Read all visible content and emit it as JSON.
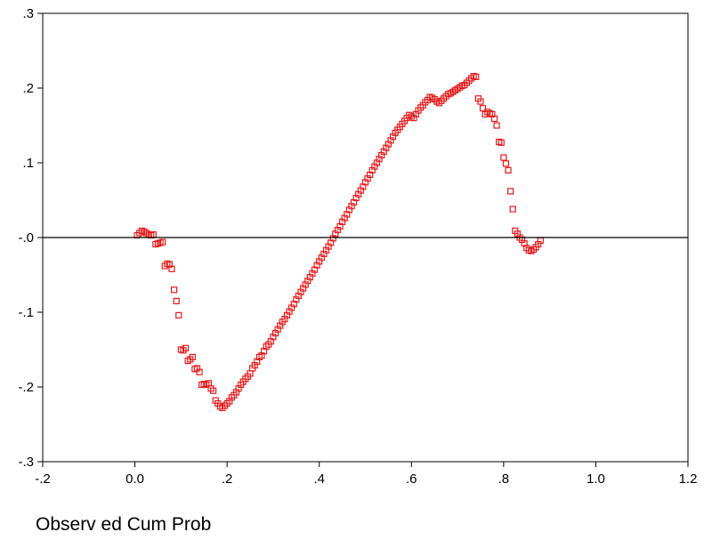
{
  "chart_data": {
    "type": "scatter",
    "title": "",
    "xlabel": "Observ ed Cum Prob",
    "ylabel": "",
    "xlim": [
      -0.2,
      1.2
    ],
    "ylim": [
      -0.3,
      0.3
    ],
    "x_ticks": [
      -0.2,
      0.0,
      0.2,
      0.4,
      0.6,
      0.8,
      1.0,
      1.2
    ],
    "x_tick_labels": [
      "-.2",
      "0.0",
      ".2",
      ".4",
      ".6",
      ".8",
      "1.0",
      "1.2"
    ],
    "y_ticks": [
      0.3,
      0.2,
      0.1,
      0.0,
      -0.1,
      -0.2,
      -0.3
    ],
    "y_tick_labels": [
      ".3",
      ".2",
      ".1",
      "-.0",
      "-.1",
      "-.2",
      "-.3"
    ],
    "reference_line_y": 0.0,
    "grid": false,
    "marker": "hollow-square",
    "colors": {
      "points": "#e41a1c",
      "axis": "#000000",
      "reference": "#000000"
    },
    "series": [
      {
        "points": [
          [
            0.005,
            0.003
          ],
          [
            0.01,
            0.006
          ],
          [
            0.015,
            0.009
          ],
          [
            0.02,
            0.008
          ],
          [
            0.025,
            0.006
          ],
          [
            0.03,
            0.004
          ],
          [
            0.035,
            0.003
          ],
          [
            0.04,
            0.004
          ],
          [
            0.045,
            -0.009
          ],
          [
            0.05,
            -0.008
          ],
          [
            0.055,
            -0.007
          ],
          [
            0.06,
            -0.006
          ],
          [
            0.065,
            -0.038
          ],
          [
            0.07,
            -0.035
          ],
          [
            0.075,
            -0.036
          ],
          [
            0.08,
            -0.042
          ],
          [
            0.085,
            -0.07
          ],
          [
            0.09,
            -0.085
          ],
          [
            0.095,
            -0.104
          ],
          [
            0.1,
            -0.15
          ],
          [
            0.105,
            -0.151
          ],
          [
            0.11,
            -0.148
          ],
          [
            0.115,
            -0.165
          ],
          [
            0.12,
            -0.163
          ],
          [
            0.125,
            -0.16
          ],
          [
            0.13,
            -0.176
          ],
          [
            0.135,
            -0.175
          ],
          [
            0.14,
            -0.18
          ],
          [
            0.145,
            -0.197
          ],
          [
            0.15,
            -0.196
          ],
          [
            0.155,
            -0.197
          ],
          [
            0.16,
            -0.195
          ],
          [
            0.165,
            -0.202
          ],
          [
            0.17,
            -0.205
          ],
          [
            0.175,
            -0.218
          ],
          [
            0.18,
            -0.222
          ],
          [
            0.185,
            -0.226
          ],
          [
            0.19,
            -0.228
          ],
          [
            0.195,
            -0.225
          ],
          [
            0.2,
            -0.222
          ],
          [
            0.205,
            -0.219
          ],
          [
            0.21,
            -0.214
          ],
          [
            0.215,
            -0.211
          ],
          [
            0.22,
            -0.207
          ],
          [
            0.225,
            -0.202
          ],
          [
            0.23,
            -0.197
          ],
          [
            0.235,
            -0.193
          ],
          [
            0.24,
            -0.189
          ],
          [
            0.245,
            -0.186
          ],
          [
            0.25,
            -0.182
          ],
          [
            0.255,
            -0.175
          ],
          [
            0.26,
            -0.171
          ],
          [
            0.265,
            -0.166
          ],
          [
            0.27,
            -0.16
          ],
          [
            0.275,
            -0.158
          ],
          [
            0.28,
            -0.152
          ],
          [
            0.285,
            -0.146
          ],
          [
            0.29,
            -0.143
          ],
          [
            0.295,
            -0.139
          ],
          [
            0.3,
            -0.133
          ],
          [
            0.305,
            -0.128
          ],
          [
            0.31,
            -0.123
          ],
          [
            0.315,
            -0.118
          ],
          [
            0.32,
            -0.113
          ],
          [
            0.325,
            -0.109
          ],
          [
            0.33,
            -0.104
          ],
          [
            0.335,
            -0.099
          ],
          [
            0.34,
            -0.094
          ],
          [
            0.345,
            -0.089
          ],
          [
            0.35,
            -0.083
          ],
          [
            0.355,
            -0.078
          ],
          [
            0.36,
            -0.073
          ],
          [
            0.365,
            -0.068
          ],
          [
            0.37,
            -0.063
          ],
          [
            0.375,
            -0.058
          ],
          [
            0.38,
            -0.053
          ],
          [
            0.385,
            -0.048
          ],
          [
            0.39,
            -0.043
          ],
          [
            0.395,
            -0.037
          ],
          [
            0.4,
            -0.032
          ],
          [
            0.405,
            -0.027
          ],
          [
            0.41,
            -0.022
          ],
          [
            0.415,
            -0.017
          ],
          [
            0.42,
            -0.012
          ],
          [
            0.425,
            -0.007
          ],
          [
            0.43,
            -0.001
          ],
          [
            0.435,
            0.005
          ],
          [
            0.44,
            0.01
          ],
          [
            0.445,
            0.015
          ],
          [
            0.45,
            0.021
          ],
          [
            0.455,
            0.026
          ],
          [
            0.46,
            0.031
          ],
          [
            0.465,
            0.037
          ],
          [
            0.47,
            0.042
          ],
          [
            0.475,
            0.047
          ],
          [
            0.48,
            0.053
          ],
          [
            0.485,
            0.058
          ],
          [
            0.49,
            0.063
          ],
          [
            0.495,
            0.068
          ],
          [
            0.5,
            0.074
          ],
          [
            0.505,
            0.079
          ],
          [
            0.51,
            0.084
          ],
          [
            0.515,
            0.09
          ],
          [
            0.52,
            0.095
          ],
          [
            0.525,
            0.1
          ],
          [
            0.53,
            0.105
          ],
          [
            0.535,
            0.11
          ],
          [
            0.54,
            0.115
          ],
          [
            0.545,
            0.12
          ],
          [
            0.55,
            0.125
          ],
          [
            0.555,
            0.13
          ],
          [
            0.56,
            0.135
          ],
          [
            0.565,
            0.14
          ],
          [
            0.57,
            0.144
          ],
          [
            0.575,
            0.148
          ],
          [
            0.58,
            0.152
          ],
          [
            0.585,
            0.156
          ],
          [
            0.59,
            0.16
          ],
          [
            0.595,
            0.164
          ],
          [
            0.6,
            0.162
          ],
          [
            0.605,
            0.16
          ],
          [
            0.61,
            0.165
          ],
          [
            0.615,
            0.17
          ],
          [
            0.62,
            0.174
          ],
          [
            0.625,
            0.177
          ],
          [
            0.63,
            0.181
          ],
          [
            0.635,
            0.184
          ],
          [
            0.64,
            0.188
          ],
          [
            0.645,
            0.187
          ],
          [
            0.65,
            0.185
          ],
          [
            0.655,
            0.182
          ],
          [
            0.66,
            0.18
          ],
          [
            0.665,
            0.183
          ],
          [
            0.67,
            0.186
          ],
          [
            0.675,
            0.189
          ],
          [
            0.68,
            0.192
          ],
          [
            0.685,
            0.193
          ],
          [
            0.69,
            0.195
          ],
          [
            0.695,
            0.197
          ],
          [
            0.7,
            0.199
          ],
          [
            0.705,
            0.201
          ],
          [
            0.71,
            0.203
          ],
          [
            0.715,
            0.204
          ],
          [
            0.72,
            0.207
          ],
          [
            0.725,
            0.21
          ],
          [
            0.73,
            0.213
          ],
          [
            0.735,
            0.216
          ],
          [
            0.74,
            0.215
          ],
          [
            0.745,
            0.186
          ],
          [
            0.75,
            0.182
          ],
          [
            0.755,
            0.173
          ],
          [
            0.76,
            0.165
          ],
          [
            0.765,
            0.168
          ],
          [
            0.77,
            0.166
          ],
          [
            0.775,
            0.165
          ],
          [
            0.78,
            0.159
          ],
          [
            0.785,
            0.15
          ],
          [
            0.79,
            0.128
          ],
          [
            0.795,
            0.127
          ],
          [
            0.8,
            0.107
          ],
          [
            0.805,
            0.099
          ],
          [
            0.81,
            0.09
          ],
          [
            0.815,
            0.062
          ],
          [
            0.82,
            0.038
          ],
          [
            0.825,
            0.009
          ],
          [
            0.83,
            0.005
          ],
          [
            0.835,
            0.0
          ],
          [
            0.84,
            -0.003
          ],
          [
            0.845,
            -0.008
          ],
          [
            0.85,
            -0.014
          ],
          [
            0.855,
            -0.017
          ],
          [
            0.86,
            -0.018
          ],
          [
            0.865,
            -0.016
          ],
          [
            0.87,
            -0.013
          ],
          [
            0.875,
            -0.009
          ],
          [
            0.88,
            -0.004
          ]
        ]
      }
    ]
  }
}
